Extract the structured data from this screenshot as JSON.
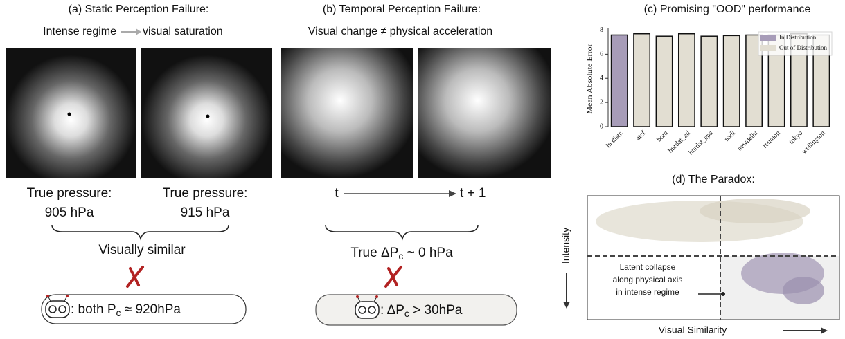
{
  "panel_a": {
    "title": "(a) Static Perception Failure:",
    "subtitle_left": "Intense regime",
    "subtitle_right": "visual saturation",
    "left_label": "True pressure:",
    "left_value": "905 hPa",
    "right_label": "True pressure:",
    "right_value": "915 hPa",
    "conclusion": "Visually similar",
    "prediction_prefix": ": both P",
    "prediction_sub": "c",
    "prediction_suffix": " ≈ 920hPa"
  },
  "panel_b": {
    "title": "(b) Temporal Perception Failure:",
    "subtitle": "Visual change ≠ physical acceleration",
    "time_start": "t",
    "time_end": "t + 1",
    "conclusion_prefix": "True ΔP",
    "conclusion_sub": "c",
    "conclusion_suffix": " ~ 0 hPa",
    "prediction_prefix": ": ΔP",
    "prediction_sub": "c",
    "prediction_suffix": " > 30hPa"
  },
  "chart_data": {
    "type": "bar",
    "title": "(c) Promising \"OOD\" performance",
    "y_label": "Mean Absolute Error",
    "categories": [
      "in distr.",
      "atcf",
      "bom",
      "hurdat_atl",
      "hurdat_epa",
      "nadi",
      "newdelhi",
      "reunion",
      "tokyo",
      "wellington"
    ],
    "series": [
      {
        "name": "In Distribution",
        "color": "#a79cb8",
        "values": [
          7.6,
          null,
          null,
          null,
          null,
          null,
          null,
          null,
          null,
          null
        ]
      },
      {
        "name": "Out of Distribution",
        "color": "#e2ded2",
        "values": [
          null,
          7.7,
          7.5,
          7.7,
          7.5,
          7.55,
          7.6,
          7.6,
          7.7,
          7.6
        ]
      }
    ],
    "ylim": [
      0,
      8.2
    ],
    "yticks": [
      0,
      2,
      4,
      6,
      8
    ],
    "legend": "upper right"
  },
  "panel_d": {
    "title": "(d) The Paradox:",
    "y_label": "Intensity",
    "x_label": "Visual Similarity",
    "annotation": [
      "Latent collapse",
      "along physical axis",
      "in intense regime"
    ]
  }
}
